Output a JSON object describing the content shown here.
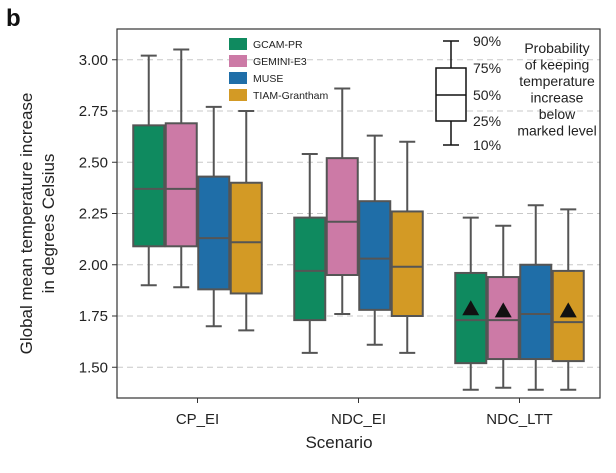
{
  "panel_label": "b",
  "chart_data": {
    "type": "boxplot",
    "xlabel": "Scenario",
    "ylabel_lines": [
      "Global mean temperature increase",
      "in degrees Celsius"
    ],
    "ylim": [
      1.35,
      3.15
    ],
    "y_ticks": [
      1.5,
      1.75,
      2.0,
      2.25,
      2.5,
      2.75,
      3.0
    ],
    "y_tick_labels": [
      "1.50",
      "1.75",
      "2.00",
      "2.25",
      "2.50",
      "2.75",
      "3.00"
    ],
    "grid": "horizontal dashed",
    "categories": [
      "CP_EI",
      "NDC_EI",
      "NDC_LTT"
    ],
    "series": [
      {
        "name": "GCAM-PR",
        "color": "#0f8a5f",
        "boxes": [
          {
            "p10": 1.9,
            "p25": 2.09,
            "median": 2.37,
            "p75": 2.68,
            "p90": 3.02
          },
          {
            "p10": 1.57,
            "p25": 1.73,
            "median": 1.97,
            "p75": 2.23,
            "p90": 2.54
          },
          {
            "p10": 1.39,
            "p25": 1.52,
            "median": 1.73,
            "p75": 1.96,
            "p90": 2.23
          }
        ]
      },
      {
        "name": "GEMINI-E3",
        "color": "#cc7aa6",
        "boxes": [
          {
            "p10": 1.89,
            "p25": 2.09,
            "median": 2.37,
            "p75": 2.69,
            "p90": 3.05
          },
          {
            "p10": 1.76,
            "p25": 1.95,
            "median": 2.21,
            "p75": 2.52,
            "p90": 2.86
          },
          {
            "p10": 1.4,
            "p25": 1.54,
            "median": 1.73,
            "p75": 1.94,
            "p90": 2.19
          }
        ]
      },
      {
        "name": "MUSE",
        "color": "#1f6ea8",
        "boxes": [
          {
            "p10": 1.7,
            "p25": 1.88,
            "median": 2.13,
            "p75": 2.43,
            "p90": 2.77
          },
          {
            "p10": 1.61,
            "p25": 1.78,
            "median": 2.03,
            "p75": 2.31,
            "p90": 2.63
          },
          {
            "p10": 1.39,
            "p25": 1.54,
            "median": 1.76,
            "p75": 2.0,
            "p90": 2.29
          }
        ]
      },
      {
        "name": "TIAM-Grantham",
        "color": "#d39a25",
        "boxes": [
          {
            "p10": 1.68,
            "p25": 1.86,
            "median": 2.11,
            "p75": 2.4,
            "p90": 2.75
          },
          {
            "p10": 1.57,
            "p25": 1.75,
            "median": 1.99,
            "p75": 2.26,
            "p90": 2.6
          },
          {
            "p10": 1.39,
            "p25": 1.53,
            "median": 1.72,
            "p75": 1.97,
            "p90": 2.27
          }
        ]
      }
    ],
    "markers": [
      {
        "category": "NDC_LTT",
        "series": "GCAM-PR",
        "value": 1.79,
        "shape": "triangle"
      },
      {
        "category": "NDC_LTT",
        "series": "GEMINI-E3",
        "value": 1.78,
        "shape": "triangle"
      },
      {
        "category": "NDC_LTT",
        "series": "TIAM-Grantham",
        "value": 1.78,
        "shape": "triangle"
      }
    ],
    "legend": {
      "placement": "top-center",
      "entries": [
        "GCAM-PR",
        "GEMINI-E3",
        "MUSE",
        "TIAM-Grantham"
      ]
    },
    "box_key": {
      "placement": "top-right",
      "percentiles": [
        "90%",
        "75%",
        "50%",
        "25%",
        "10%"
      ],
      "text_lines": [
        "Probability",
        "of keeping",
        "temperature",
        "increase",
        "below",
        "marked level"
      ]
    }
  }
}
